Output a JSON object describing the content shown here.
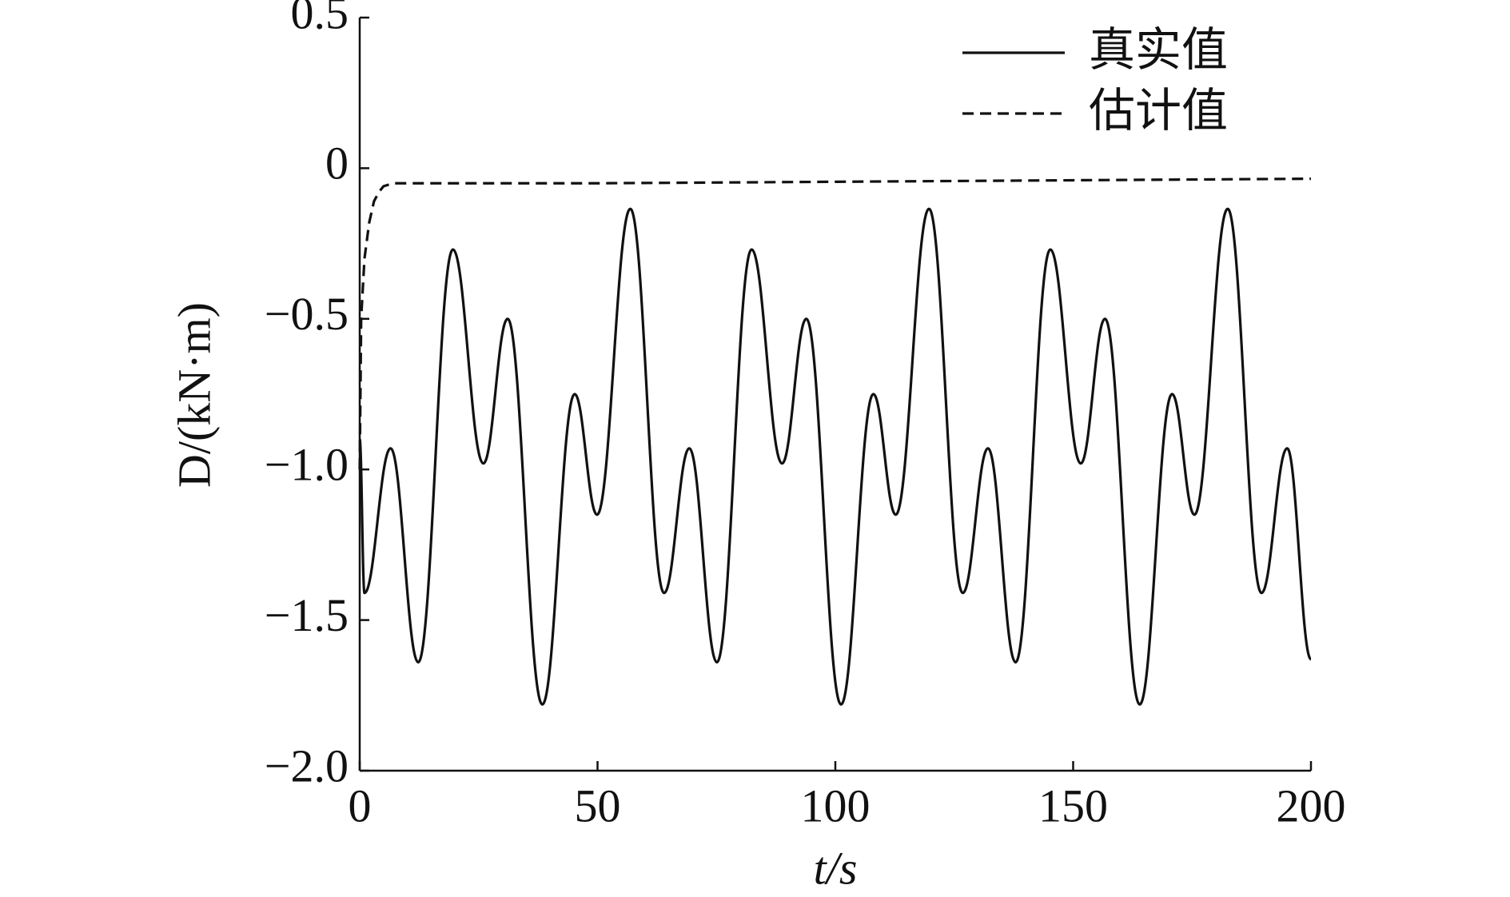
{
  "chart_data": {
    "type": "line",
    "xlabel": "t/s",
    "ylabel": "D/(kN·m)",
    "xlim": [
      0,
      200
    ],
    "xticks": [
      0,
      50,
      100,
      150,
      200
    ],
    "ylim": [
      -2,
      0.5
    ],
    "yticks": [
      0.5,
      0,
      {
        "value": -0.5,
        "label": "−0.5"
      },
      {
        "value": -1,
        "label": "−1.0"
      },
      {
        "value": -1.5,
        "label": "−1.5"
      },
      {
        "value": -2,
        "label": "−2.0"
      }
    ],
    "legend": "upper right",
    "series": [
      {
        "name": "真实值",
        "color": "#111111",
        "dash": false,
        "smooth": true,
        "x": [
          0,
          1,
          6.5,
          12.3,
          19.6,
          26,
          31.1,
          38.4,
          45.2,
          49.9,
          56.9,
          64,
          69.3,
          75.1,
          82.4,
          88.8,
          93.9,
          101.2,
          108,
          112.7,
          119.7,
          126.8,
          132.1,
          137.9,
          145.2,
          151.6,
          156.7,
          164,
          170.8,
          175.5,
          182.5,
          189.6,
          195,
          200
        ],
        "values": [
          -0.9,
          -1.41,
          -0.93,
          -1.64,
          -0.27,
          -0.98,
          -0.5,
          -1.78,
          -0.75,
          -1.15,
          -0.135,
          -1.41,
          -0.93,
          -1.64,
          -0.27,
          -0.98,
          -0.5,
          -1.78,
          -0.75,
          -1.15,
          -0.135,
          -1.41,
          -0.93,
          -1.64,
          -0.27,
          -0.98,
          -0.5,
          -1.78,
          -0.75,
          -1.15,
          -0.135,
          -1.41,
          -0.93,
          -1.63
        ]
      },
      {
        "name": "估计值",
        "color": "#111111",
        "dash": true,
        "smooth": false,
        "x": [
          0,
          0.3,
          1,
          2,
          3,
          4,
          5,
          7,
          50,
          100,
          150,
          200
        ],
        "values": [
          -1.0,
          -0.5,
          -0.3,
          -0.18,
          -0.11,
          -0.08,
          -0.06,
          -0.05,
          -0.05,
          -0.045,
          -0.04,
          -0.035
        ]
      }
    ]
  }
}
